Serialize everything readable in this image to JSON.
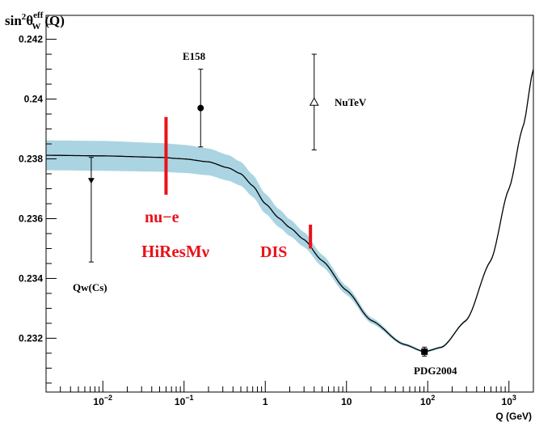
{
  "chart_data": {
    "type": "line",
    "xscale": "log",
    "xlim": [
      0.002,
      2000
    ],
    "ylim": [
      0.2302,
      0.2428
    ],
    "ylabel": {
      "base": "sin",
      "sup": "2",
      "theta": "θ",
      "sub": "W",
      "eff": "eff",
      "arg": "(Q)"
    },
    "xlabel": "Q (GeV)",
    "x_ticks": [
      {
        "value": 0.01,
        "base": "10",
        "exp": "−2"
      },
      {
        "value": 0.1,
        "base": "10",
        "exp": "−1"
      },
      {
        "value": 1,
        "base": "1",
        "exp": ""
      },
      {
        "value": 10,
        "base": "10",
        "exp": ""
      },
      {
        "value": 100,
        "base": "10",
        "exp": "2"
      },
      {
        "value": 1000,
        "base": "10",
        "exp": "3"
      }
    ],
    "y_ticks": [
      {
        "value": 0.232,
        "label": "0.232"
      },
      {
        "value": 0.234,
        "label": "0.234"
      },
      {
        "value": 0.236,
        "label": "0.236"
      },
      {
        "value": 0.238,
        "label": "0.238"
      },
      {
        "value": 0.24,
        "label": "0.24"
      },
      {
        "value": 0.242,
        "label": "0.242"
      }
    ],
    "theory_curve": {
      "x": [
        0.002,
        0.01,
        0.05,
        0.1,
        0.2,
        0.35,
        0.5,
        0.7,
        1.0,
        1.5,
        2.0,
        3.0,
        5.0,
        10,
        20,
        50,
        91,
        150,
        300,
        600,
        1000,
        1500,
        2000
      ],
      "y": [
        0.23812,
        0.2381,
        0.23805,
        0.238,
        0.2379,
        0.2377,
        0.2375,
        0.2371,
        0.2365,
        0.236,
        0.2357,
        0.2353,
        0.2346,
        0.2336,
        0.2326,
        0.2318,
        0.23155,
        0.2317,
        0.2326,
        0.2346,
        0.237,
        0.2391,
        0.241
      ],
      "band_halfwidth": [
        0.0005,
        0.0005,
        0.00048,
        0.00047,
        0.00045,
        0.00043,
        0.0004,
        0.00037,
        0.00033,
        0.0003,
        0.00028,
        0.00025,
        0.0002,
        0.00015,
        0.0001,
        5e-05,
        4e-05,
        4e-05,
        4e-05,
        4e-05,
        4e-05,
        4e-05,
        4e-05
      ],
      "band_color": "#abd4e2",
      "line_color": "#000000"
    },
    "measurements": [
      {
        "name": "Qw(Cs)",
        "x": 0.0072,
        "y": 0.23725,
        "err_up": 0.0008,
        "err_down": 0.0027,
        "marker": "down-triangle"
      },
      {
        "name": "E158",
        "x": 0.16,
        "y": 0.2397,
        "err_up": 0.0013,
        "err_down": 0.0013,
        "marker": "circle"
      },
      {
        "name": "NuTeV",
        "x": 4.0,
        "y": 0.2399,
        "err_up": 0.0016,
        "err_down": 0.0016,
        "marker": "open-triangle"
      },
      {
        "name": "PDG2004",
        "x": 91.2,
        "y": 0.23155,
        "err_up": 0.00015,
        "err_down": 0.00015,
        "marker": "square"
      }
    ],
    "projections": [
      {
        "name": "nu−e",
        "x": 0.06,
        "y_min": 0.2368,
        "y_max": 0.2394,
        "color": "#e8121a"
      },
      {
        "name": "DIS",
        "x": 3.6,
        "y_min": 0.235,
        "y_max": 0.2358,
        "color": "#e8121a"
      }
    ],
    "annotations": [
      {
        "text": "HiResMν",
        "color": "#e8121a"
      }
    ]
  }
}
